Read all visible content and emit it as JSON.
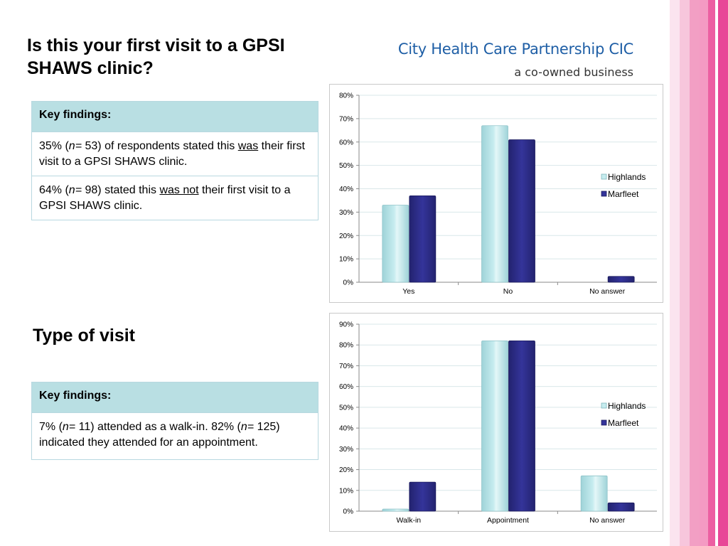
{
  "brand": {
    "name": "City Health Care Partnership CIC",
    "tagline": "a co-owned business",
    "stripe_colors": [
      "#fbe4ef",
      "#f7c6dc",
      "#f29fc4",
      "#f49ac3",
      "#ec5fa2",
      "#ffffff",
      "#e84797"
    ]
  },
  "section1": {
    "title": "Is this your first visit to a GPSI SHAWS  clinic?",
    "key_findings_label": "Key findings:",
    "finding1": {
      "p1": "35% (",
      "n": "n=",
      "p2": " 53) of respondents stated this ",
      "u": "was",
      "p3": " their first visit to a GPSI SHAWS clinic."
    },
    "finding2": {
      "p1": "64% (",
      "n": "n=",
      "p2": " 98) stated this ",
      "u": "was not",
      "p3": " their first visit to a GPSI SHAWS clinic."
    }
  },
  "section2": {
    "title": "Type of visit",
    "key_findings_label": "Key findings:",
    "finding1": {
      "p1": "7% (",
      "n1": "n=",
      "p2": " 11) attended as a walk-in.  82% (",
      "n2": "n=",
      "p3": " 125) indicated they attended for an appointment."
    }
  },
  "chart_data": [
    {
      "type": "bar",
      "title": "",
      "categories": [
        "Yes",
        "No",
        "No answer"
      ],
      "series": [
        {
          "name": "Highlands",
          "values": [
            33,
            67,
            0
          ],
          "color": "#c6ecef"
        },
        {
          "name": "Marfleet",
          "values": [
            37,
            61,
            2.5
          ],
          "color": "#34349a"
        }
      ],
      "ylim": [
        0,
        80
      ],
      "yticks": [
        "0%",
        "10%",
        "20%",
        "30%",
        "40%",
        "50%",
        "60%",
        "70%",
        "80%"
      ],
      "grid": true,
      "legend": "right"
    },
    {
      "type": "bar",
      "title": "",
      "categories": [
        "Walk-in",
        "Appointment",
        "No answer"
      ],
      "series": [
        {
          "name": "Highlands",
          "values": [
            1,
            82,
            17
          ],
          "color": "#c6ecef"
        },
        {
          "name": "Marfleet",
          "values": [
            14,
            82,
            4
          ],
          "color": "#34349a"
        }
      ],
      "ylim": [
        0,
        90
      ],
      "yticks": [
        "0%",
        "10%",
        "20%",
        "30%",
        "40%",
        "50%",
        "60%",
        "70%",
        "80%",
        "90%"
      ],
      "grid": true,
      "legend": "right"
    }
  ]
}
